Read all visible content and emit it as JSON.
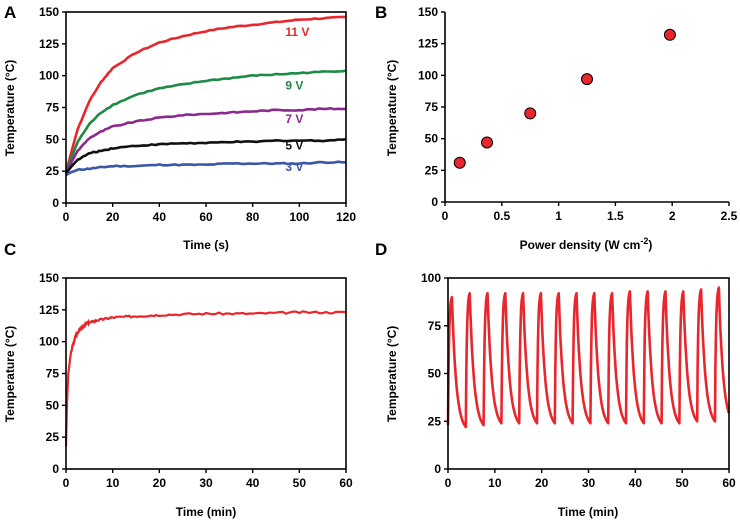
{
  "figure": {
    "colors": {
      "red": "#e8262c",
      "green": "#1d8a45",
      "purple": "#8b2a8e",
      "black": "#111111",
      "blue": "#3b56a6",
      "marker_fill": "#e8262c",
      "marker_edge": "#000000"
    },
    "panels": [
      {
        "letter": "A"
      },
      {
        "letter": "B"
      },
      {
        "letter": "C"
      },
      {
        "letter": "D"
      }
    ]
  },
  "chart_data": [
    {
      "id": "A",
      "type": "line",
      "xlabel": "Time (s)",
      "ylabel": "Temperature (°C)",
      "xlim": [
        0,
        120
      ],
      "ylim": [
        0,
        150
      ],
      "xticks": [
        0,
        20,
        40,
        60,
        80,
        100,
        120
      ],
      "yticks": [
        0,
        25,
        50,
        75,
        100,
        125,
        150
      ],
      "series": [
        {
          "name": "11 V",
          "color": "#e8262c",
          "x": [
            0,
            2,
            5,
            10,
            15,
            20,
            30,
            40,
            50,
            60,
            70,
            80,
            90,
            100,
            110,
            120
          ],
          "y": [
            24,
            38,
            58,
            80,
            95,
            106,
            118,
            126,
            131,
            135,
            138,
            140,
            142,
            144,
            145,
            146
          ]
        },
        {
          "name": "9 V",
          "color": "#1d8a45",
          "x": [
            0,
            2,
            5,
            10,
            15,
            20,
            30,
            40,
            50,
            60,
            70,
            80,
            90,
            100,
            110,
            120
          ],
          "y": [
            24,
            34,
            48,
            62,
            71,
            77,
            85,
            90,
            93,
            96,
            98,
            100,
            101,
            102,
            103,
            104
          ]
        },
        {
          "name": "7 V",
          "color": "#8b2a8e",
          "x": [
            0,
            2,
            5,
            10,
            15,
            20,
            30,
            40,
            50,
            60,
            70,
            80,
            90,
            100,
            110,
            120
          ],
          "y": [
            23,
            31,
            41,
            51,
            56,
            60,
            64,
            67,
            69,
            70,
            71,
            72,
            73,
            73,
            74,
            74
          ]
        },
        {
          "name": "5 V",
          "color": "#111111",
          "x": [
            0,
            2,
            5,
            10,
            15,
            20,
            30,
            40,
            50,
            60,
            70,
            80,
            90,
            100,
            110,
            120
          ],
          "y": [
            23,
            28,
            34,
            39,
            41,
            43,
            45,
            46,
            47,
            47,
            48,
            48,
            49,
            49,
            49,
            50
          ]
        },
        {
          "name": "3 V",
          "color": "#3b56a6",
          "x": [
            0,
            2,
            5,
            10,
            15,
            20,
            30,
            40,
            50,
            60,
            70,
            80,
            90,
            100,
            110,
            120
          ],
          "y": [
            22,
            24,
            26,
            27,
            28,
            29,
            29,
            30,
            30,
            30,
            31,
            31,
            31,
            31,
            32,
            32
          ]
        }
      ],
      "labels": [
        {
          "text": "11 V",
          "color": "#e8262c",
          "x": 94,
          "y": 131
        },
        {
          "text": "9 V",
          "color": "#1d8a45",
          "x": 94,
          "y": 89
        },
        {
          "text": "7 V",
          "color": "#8b2a8e",
          "x": 94,
          "y": 63
        },
        {
          "text": "5 V",
          "color": "#111111",
          "x": 94,
          "y": 42
        },
        {
          "text": "3 V",
          "color": "#3b56a6",
          "x": 94,
          "y": 25
        }
      ]
    },
    {
      "id": "B",
      "type": "scatter",
      "xlabel": "Power density (W cm",
      "xlabel_sup": "-2",
      "xlabel_end": ")",
      "ylabel": "Temperature (°C)",
      "xlim": [
        0,
        2.5
      ],
      "ylim": [
        0,
        150
      ],
      "xticks": [
        0,
        0.5,
        1,
        1.5,
        2,
        2.5
      ],
      "xtick_labels": [
        "0",
        "0.5",
        "1",
        "1.5",
        "2",
        "2.5"
      ],
      "yticks": [
        0,
        25,
        50,
        75,
        100,
        125,
        150
      ],
      "series": [
        {
          "name": "Temperature",
          "x": [
            0.13,
            0.37,
            0.75,
            1.25,
            1.98
          ],
          "y": [
            31,
            47,
            70,
            97,
            132
          ]
        }
      ]
    },
    {
      "id": "C",
      "type": "line",
      "xlabel": "Time (min)",
      "ylabel": "Temperature (°C)",
      "xlim": [
        0,
        60
      ],
      "ylim": [
        0,
        150
      ],
      "xticks": [
        0,
        10,
        20,
        30,
        40,
        50,
        60
      ],
      "yticks": [
        0,
        25,
        50,
        75,
        100,
        125,
        150
      ],
      "series": [
        {
          "name": "Temperature",
          "color": "#e8262c",
          "x": [
            0,
            0.2,
            0.5,
            1,
            1.5,
            2,
            3,
            4,
            5,
            7,
            10,
            15,
            20,
            30,
            40,
            50,
            60
          ],
          "y": [
            18,
            50,
            75,
            90,
            98,
            104,
            110,
            113,
            115,
            117,
            119,
            120,
            121,
            122,
            122,
            123,
            123
          ]
        }
      ]
    },
    {
      "id": "D",
      "type": "line",
      "xlabel": "Time (min)",
      "ylabel": "Temperature (°C)",
      "xlim": [
        0,
        60
      ],
      "ylim": [
        0,
        100
      ],
      "xticks": [
        0,
        10,
        20,
        30,
        40,
        50,
        60
      ],
      "yticks": [
        0,
        25,
        50,
        75,
        100
      ],
      "series": [
        {
          "name": "Temperature",
          "color": "#e8262c",
          "cycle_period": 3.8,
          "cycle_count": 16,
          "heating_fraction": 0.22,
          "start_temp": 23,
          "min_temps": [
            23,
            22,
            23,
            24,
            24,
            24,
            24,
            24,
            24,
            24,
            24,
            24,
            24,
            24,
            25,
            25
          ],
          "peak_temps": [
            90,
            92,
            92,
            92,
            92,
            92,
            92,
            92,
            92,
            92,
            93,
            93,
            93,
            93,
            94,
            95
          ]
        }
      ]
    }
  ]
}
